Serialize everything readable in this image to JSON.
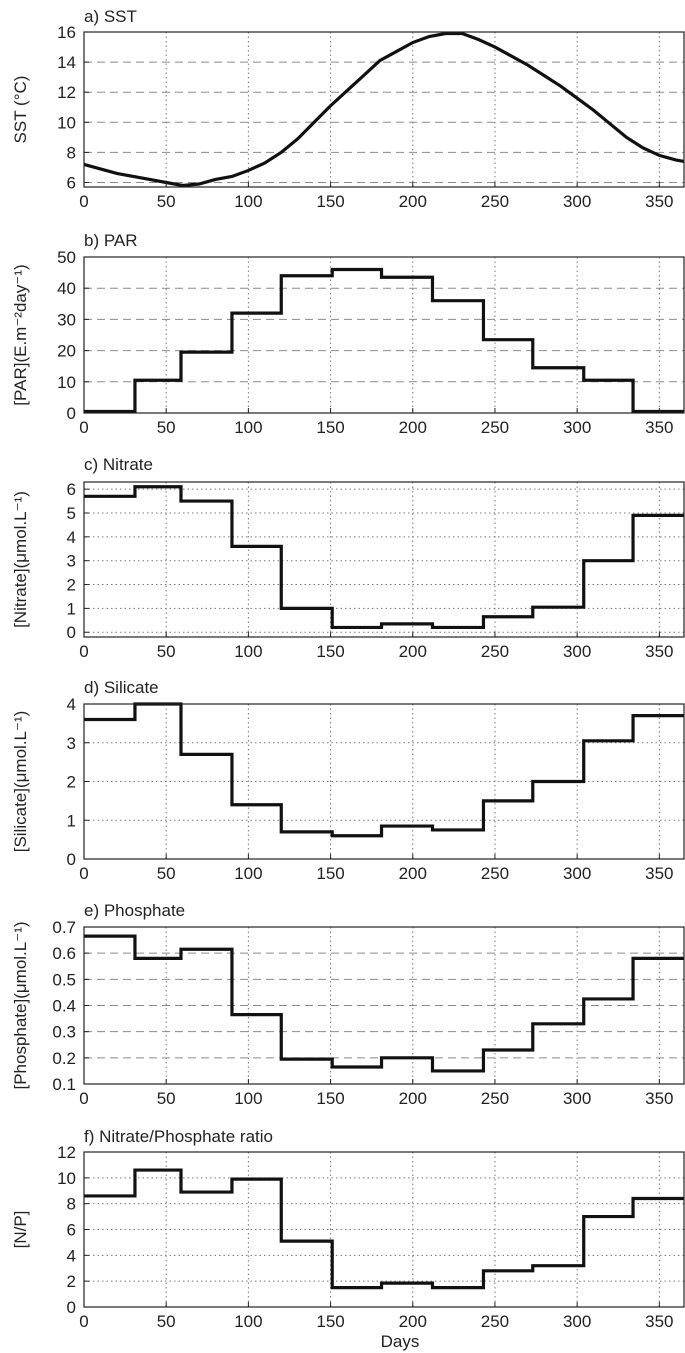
{
  "chart_data": [
    {
      "id": "a",
      "type": "line",
      "title": "a) SST",
      "ylabel": "SST (°C)",
      "xlabel": "",
      "xlim": [
        0,
        365
      ],
      "ylim": [
        5.7,
        16
      ],
      "xticks": [
        0,
        50,
        100,
        150,
        200,
        250,
        300,
        350
      ],
      "yticks": [
        6,
        8,
        10,
        12,
        14,
        16
      ],
      "grid": "dashed",
      "x": [
        0,
        10,
        20,
        30,
        40,
        50,
        60,
        70,
        80,
        90,
        100,
        110,
        120,
        130,
        140,
        150,
        160,
        170,
        180,
        190,
        200,
        210,
        220,
        230,
        240,
        250,
        260,
        270,
        280,
        290,
        300,
        310,
        320,
        330,
        340,
        350,
        360,
        365
      ],
      "y": [
        7.2,
        6.9,
        6.6,
        6.4,
        6.2,
        6.0,
        5.8,
        5.9,
        6.2,
        6.4,
        6.8,
        7.3,
        8.0,
        8.9,
        10.0,
        11.1,
        12.1,
        13.1,
        14.1,
        14.7,
        15.3,
        15.7,
        15.9,
        15.9,
        15.5,
        15.0,
        14.4,
        13.8,
        13.1,
        12.4,
        11.6,
        10.8,
        9.9,
        9.0,
        8.3,
        7.8,
        7.5,
        7.4
      ]
    },
    {
      "id": "b",
      "type": "line",
      "title": "b) PAR",
      "ylabel": "[PAR](E.m⁻²day⁻¹)",
      "xlabel": "",
      "xlim": [
        0,
        365
      ],
      "ylim": [
        0,
        50
      ],
      "xticks": [
        0,
        50,
        100,
        150,
        200,
        250,
        300,
        350
      ],
      "yticks": [
        0,
        10,
        20,
        30,
        40,
        50
      ],
      "grid": "dashed",
      "step_edges": [
        0,
        31,
        59,
        90,
        120,
        151,
        181,
        212,
        243,
        273,
        304,
        334,
        365
      ],
      "values": [
        0.5,
        10.5,
        19.5,
        32,
        44,
        46,
        43.5,
        36,
        23.5,
        14.5,
        10.5,
        0.5
      ]
    },
    {
      "id": "c",
      "type": "line",
      "title": "c) Nitrate",
      "ylabel": "[Nitrate](μmol.L⁻¹)",
      "xlabel": "",
      "xlim": [
        0,
        365
      ],
      "ylim": [
        -0.2,
        6.3
      ],
      "xticks": [
        0,
        50,
        100,
        150,
        200,
        250,
        300,
        350
      ],
      "yticks": [
        0,
        1,
        2,
        3,
        4,
        5,
        6
      ],
      "grid": "dotted",
      "step_edges": [
        0,
        31,
        59,
        90,
        120,
        151,
        181,
        212,
        243,
        273,
        304,
        334,
        365
      ],
      "values": [
        5.7,
        6.1,
        5.5,
        3.6,
        1.0,
        0.2,
        0.35,
        0.2,
        0.65,
        1.05,
        3.0,
        4.9
      ]
    },
    {
      "id": "d",
      "type": "line",
      "title": "d) Silicate",
      "ylabel": "[Silicate](μmol.L⁻¹)",
      "xlabel": "",
      "xlim": [
        0,
        365
      ],
      "ylim": [
        0,
        4
      ],
      "xticks": [
        0,
        50,
        100,
        150,
        200,
        250,
        300,
        350
      ],
      "yticks": [
        0,
        1,
        2,
        3,
        4
      ],
      "grid": "dotted",
      "step_edges": [
        0,
        31,
        59,
        90,
        120,
        151,
        181,
        212,
        243,
        273,
        304,
        334,
        365
      ],
      "values": [
        3.6,
        4.0,
        2.7,
        1.4,
        0.7,
        0.6,
        0.85,
        0.75,
        1.5,
        2.0,
        3.05,
        3.7
      ]
    },
    {
      "id": "e",
      "type": "line",
      "title": "e) Phosphate",
      "ylabel": "[Phosphate](μmol.L⁻¹)",
      "xlabel": "",
      "xlim": [
        0,
        365
      ],
      "ylim": [
        0.1,
        0.7
      ],
      "xticks": [
        0,
        50,
        100,
        150,
        200,
        250,
        300,
        350
      ],
      "yticks": [
        0.1,
        0.2,
        0.3,
        0.4,
        0.5,
        0.6,
        0.7
      ],
      "ytick_labels": [
        "0.1",
        "0.2",
        "0.3",
        "0.4",
        "0.5",
        "0.6",
        "0.7"
      ],
      "grid": "dashed",
      "step_edges": [
        0,
        31,
        59,
        90,
        120,
        151,
        181,
        212,
        243,
        273,
        304,
        334,
        365
      ],
      "values": [
        0.665,
        0.58,
        0.615,
        0.365,
        0.195,
        0.165,
        0.2,
        0.15,
        0.23,
        0.33,
        0.425,
        0.58
      ]
    },
    {
      "id": "f",
      "type": "line",
      "title": "f) Nitrate/Phosphate ratio",
      "ylabel": "[N/P]",
      "xlabel": "Days",
      "xlim": [
        0,
        365
      ],
      "ylim": [
        0,
        12
      ],
      "xticks": [
        0,
        50,
        100,
        150,
        200,
        250,
        300,
        350
      ],
      "yticks": [
        0,
        2,
        4,
        6,
        8,
        10,
        12
      ],
      "grid": "dotted",
      "step_edges": [
        0,
        31,
        59,
        90,
        120,
        151,
        181,
        212,
        243,
        273,
        304,
        334,
        365
      ],
      "values": [
        8.6,
        10.6,
        8.9,
        9.9,
        5.1,
        1.5,
        1.85,
        1.5,
        2.8,
        3.2,
        7.0,
        8.4
      ]
    }
  ]
}
